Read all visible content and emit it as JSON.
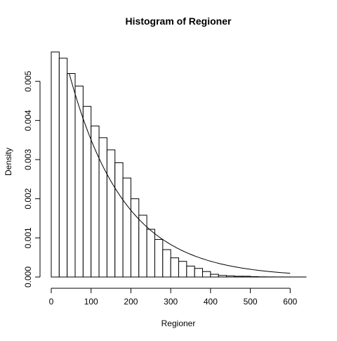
{
  "chart_data": {
    "type": "bar",
    "title": "Histogram of Regioner",
    "xlabel": "Regioner",
    "ylabel": "Density",
    "xlim": [
      0,
      640
    ],
    "ylim": [
      0,
      0.006
    ],
    "bin_width": 20,
    "x_ticks": [
      0,
      100,
      200,
      300,
      400,
      500,
      600
    ],
    "y_ticks": [
      0.0,
      0.001,
      0.002,
      0.003,
      0.004,
      0.005
    ],
    "y_tick_labels": [
      "0.000",
      "0.001",
      "0.002",
      "0.003",
      "0.004",
      "0.005"
    ],
    "x_tick_labels": [
      "0",
      "100",
      "200",
      "300",
      "400",
      "500",
      "600"
    ],
    "bins": [
      {
        "x0": 0,
        "x1": 20,
        "density": 0.00575
      },
      {
        "x0": 20,
        "x1": 40,
        "density": 0.00559
      },
      {
        "x0": 40,
        "x1": 60,
        "density": 0.0052
      },
      {
        "x0": 60,
        "x1": 80,
        "density": 0.00488
      },
      {
        "x0": 80,
        "x1": 100,
        "density": 0.00436
      },
      {
        "x0": 100,
        "x1": 120,
        "density": 0.00386
      },
      {
        "x0": 120,
        "x1": 140,
        "density": 0.00356
      },
      {
        "x0": 140,
        "x1": 160,
        "density": 0.00325
      },
      {
        "x0": 160,
        "x1": 180,
        "density": 0.00292
      },
      {
        "x0": 180,
        "x1": 200,
        "density": 0.00253
      },
      {
        "x0": 200,
        "x1": 220,
        "density": 0.002
      },
      {
        "x0": 220,
        "x1": 240,
        "density": 0.00158
      },
      {
        "x0": 240,
        "x1": 260,
        "density": 0.00122
      },
      {
        "x0": 260,
        "x1": 280,
        "density": 0.00096
      },
      {
        "x0": 280,
        "x1": 300,
        "density": 0.0007
      },
      {
        "x0": 300,
        "x1": 320,
        "density": 0.00049
      },
      {
        "x0": 320,
        "x1": 340,
        "density": 0.0004
      },
      {
        "x0": 340,
        "x1": 360,
        "density": 0.00028
      },
      {
        "x0": 360,
        "x1": 380,
        "density": 0.00022
      },
      {
        "x0": 380,
        "x1": 400,
        "density": 0.00014
      },
      {
        "x0": 400,
        "x1": 420,
        "density": 7e-05
      },
      {
        "x0": 420,
        "x1": 440,
        "density": 4e-05
      },
      {
        "x0": 440,
        "x1": 460,
        "density": 3e-05
      },
      {
        "x0": 460,
        "x1": 480,
        "density": 2e-05
      },
      {
        "x0": 480,
        "x1": 500,
        "density": 2e-05
      },
      {
        "x0": 500,
        "x1": 520,
        "density": 1e-05
      },
      {
        "x0": 520,
        "x1": 540,
        "density": 5e-06
      },
      {
        "x0": 540,
        "x1": 560,
        "density": 3e-06
      },
      {
        "x0": 560,
        "x1": 580,
        "density": 2e-06
      },
      {
        "x0": 580,
        "x1": 600,
        "density": 2e-06
      },
      {
        "x0": 600,
        "x1": 620,
        "density": 1e-06
      },
      {
        "x0": 620,
        "x1": 640,
        "density": 1e-06
      }
    ],
    "curve": {
      "type": "exponential-density",
      "rate": 0.0072,
      "x_start": 45,
      "x_end": 600
    },
    "grid": false,
    "legend": "none"
  }
}
